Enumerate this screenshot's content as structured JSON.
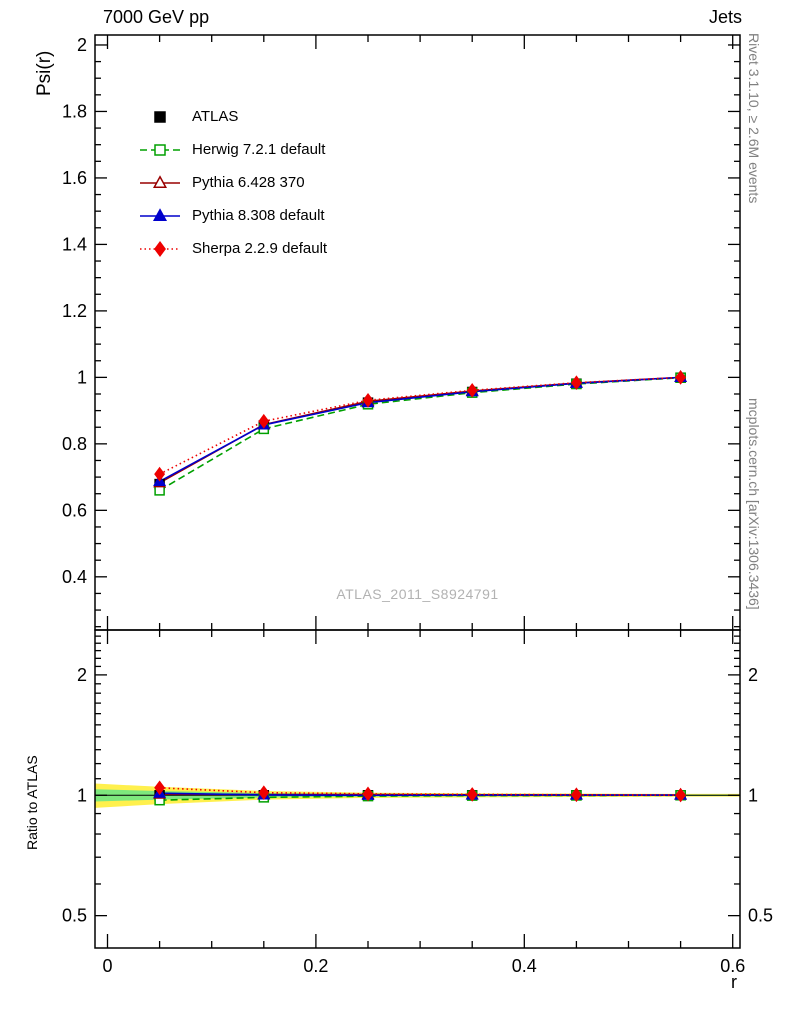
{
  "header": {
    "beam_label": "7000 GeV pp",
    "process_label": "Jets"
  },
  "margin_notes": {
    "right_top": "Rivet 3.1.10, ≥ 2.6M events",
    "right_bottom": "mcplots.cern.ch [arXiv:1306.3436]"
  },
  "watermark": "ATLAS_2011_S8924791",
  "chart_data": {
    "type": "line",
    "xlabel": "r",
    "ylabel_main": "Psi(r)",
    "ylabel_ratio": "Ratio to ATLAS",
    "xlim": [
      -0.012,
      0.607
    ],
    "x_major_ticks": [
      0,
      0.2,
      0.4,
      0.6
    ],
    "x_minor_ticks": [
      0.05,
      0.1,
      0.15,
      0.25,
      0.3,
      0.35,
      0.45,
      0.5,
      0.55
    ],
    "main_panel": {
      "scale": "linear",
      "ylim": [
        0.24,
        2.03
      ],
      "y_major_ticks": [
        0.4,
        0.6,
        0.8,
        1,
        1.2,
        1.4,
        1.6,
        1.8,
        2
      ],
      "y_minor_ticks": [
        0.25,
        0.3,
        0.35,
        0.45,
        0.5,
        0.55,
        0.65,
        0.7,
        0.75,
        0.85,
        0.9,
        0.95,
        1.05,
        1.1,
        1.15,
        1.25,
        1.3,
        1.35,
        1.45,
        1.5,
        1.55,
        1.65,
        1.7,
        1.75,
        1.85,
        1.9,
        1.95
      ]
    },
    "ratio_panel": {
      "scale": "log",
      "ylim": [
        0.415,
        2.59
      ],
      "y_major_ticks": [
        0.5,
        1,
        2
      ],
      "y_minor_ticks": [
        0.6,
        0.7,
        0.8,
        0.9,
        1.1,
        1.2,
        1.3,
        1.4,
        1.5,
        1.6,
        1.7,
        1.8,
        1.9,
        2.1,
        2.2,
        2.3,
        2.4,
        2.5
      ]
    },
    "x": [
      0.05,
      0.15,
      0.25,
      0.35,
      0.45,
      0.55
    ],
    "series": [
      {
        "name": "atlas",
        "label": "ATLAS",
        "color": "#000000",
        "marker": "square",
        "marker_filled": true,
        "line": "none",
        "values": [
          0.679,
          0.855,
          0.924,
          0.956,
          0.981,
          0.999
        ],
        "ratio": [
          1.0,
          1.0,
          1.0,
          1.0,
          1.0,
          1.0
        ]
      },
      {
        "name": "herwig",
        "label": "Herwig 7.2.1 default",
        "color": "#00a000",
        "marker": "square",
        "marker_filled": false,
        "line": "dashed",
        "values": [
          0.66,
          0.845,
          0.919,
          0.954,
          0.98,
          0.999
        ],
        "ratio": [
          0.972,
          0.988,
          0.995,
          0.998,
          0.999,
          1.0
        ]
      },
      {
        "name": "pythia6",
        "label": "Pythia 6.428 370",
        "color": "#990000",
        "marker": "triangle",
        "marker_filled": false,
        "line": "solid",
        "values": [
          0.683,
          0.858,
          0.928,
          0.959,
          0.983,
          1.0
        ],
        "ratio": [
          1.006,
          1.004,
          1.004,
          1.003,
          1.002,
          1.001
        ]
      },
      {
        "name": "pythia8",
        "label": "Pythia 8.308 default",
        "color": "#0000cc",
        "marker": "triangle",
        "marker_filled": true,
        "line": "solid",
        "values": [
          0.687,
          0.857,
          0.924,
          0.957,
          0.982,
          1.0
        ],
        "ratio": [
          1.012,
          1.002,
          1.0,
          1.001,
          1.001,
          1.001
        ]
      },
      {
        "name": "sherpa",
        "label": "Sherpa 2.2.9 default",
        "color": "#ee0000",
        "marker": "diamond",
        "marker_filled": true,
        "line": "dotted",
        "values": [
          0.709,
          0.868,
          0.931,
          0.961,
          0.984,
          1.0
        ],
        "ratio": [
          1.044,
          1.015,
          1.008,
          1.005,
          1.003,
          1.001
        ]
      }
    ],
    "ratio_band": {
      "x": [
        -0.012,
        0.05,
        0.15,
        0.25,
        0.35,
        0.45,
        0.55,
        0.607
      ],
      "yellow_halfwidth": [
        0.07,
        0.05,
        0.025,
        0.015,
        0.012,
        0.01,
        0.008,
        0.008
      ],
      "green_halfwidth": [
        0.035,
        0.025,
        0.013,
        0.008,
        0.006,
        0.005,
        0.004,
        0.004
      ],
      "yellow_color": "#fff04d",
      "green_color": "#7de87d"
    }
  }
}
